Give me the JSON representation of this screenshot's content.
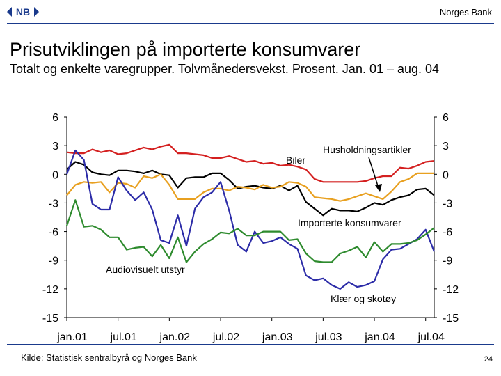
{
  "header": {
    "brand": "Norges Bank",
    "logo_text": "NB"
  },
  "title": "Prisutviklingen på importerte konsumvarer",
  "subtitle": "Totalt og enkelte varegrupper. Tolvmånedersvekst. Prosent. Jan. 01 – aug. 04",
  "footer": {
    "source": "Kilde: Statistisk sentralbyrå og Norges Bank",
    "page": "24"
  },
  "chart_data": {
    "type": "line",
    "title": "",
    "xlabel": "",
    "ylabel": "",
    "ylim": [
      -15,
      6
    ],
    "yticks": [
      "6",
      "3",
      "0",
      "-3",
      "-6",
      "-9",
      "-12",
      "-15"
    ],
    "yticks_right": [
      "6",
      "3",
      "0",
      "-3",
      "-6",
      "-9",
      "-12",
      "-15"
    ],
    "xticks": [
      "jan.01",
      "jul.01",
      "jan.02",
      "jul.02",
      "jan.03",
      "jul.03",
      "jan.04",
      "jul.04"
    ],
    "x": [
      "jan.01",
      "feb.01",
      "mar.01",
      "apr.01",
      "mai.01",
      "jun.01",
      "jul.01",
      "aug.01",
      "sep.01",
      "okt.01",
      "nov.01",
      "des.01",
      "jan.02",
      "feb.02",
      "mar.02",
      "apr.02",
      "mai.02",
      "jun.02",
      "jul.02",
      "aug.02",
      "sep.02",
      "okt.02",
      "nov.02",
      "des.02",
      "jan.03",
      "feb.03",
      "mar.03",
      "apr.03",
      "mai.03",
      "jun.03",
      "jul.03",
      "aug.03",
      "sep.03",
      "okt.03",
      "nov.03",
      "des.03",
      "jan.04",
      "feb.04",
      "mar.04",
      "apr.04",
      "mai.04",
      "jun.04",
      "jul.04",
      "aug.04"
    ],
    "series": [
      {
        "name": "Husholdningsartikler",
        "color": "#d42020",
        "values": [
          2.3,
          2.2,
          2.2,
          2.6,
          2.3,
          2.5,
          2.1,
          2.2,
          2.5,
          2.8,
          2.6,
          2.9,
          3.1,
          2.2,
          2.2,
          2.1,
          2.0,
          1.7,
          1.7,
          1.9,
          1.6,
          1.3,
          1.4,
          1.1,
          1.2,
          0.9,
          1.0,
          0.8,
          0.5,
          -0.5,
          -0.8,
          -0.8,
          -0.8,
          -0.8,
          -0.8,
          -0.7,
          -0.4,
          -0.2,
          -0.2,
          0.7,
          0.6,
          0.9,
          1.3,
          1.4
        ]
      },
      {
        "name": "Biler",
        "color": "#000000",
        "values": [
          0.5,
          1.3,
          1.0,
          0.2,
          0.0,
          -0.1,
          0.4,
          0.4,
          0.3,
          0.1,
          0.4,
          0.0,
          -0.1,
          -1.4,
          -0.4,
          -0.3,
          -0.3,
          0.1,
          0.1,
          -0.6,
          -1.5,
          -1.3,
          -1.2,
          -1.4,
          -1.5,
          -1.2,
          -1.7,
          -1.2,
          -2.9,
          -3.6,
          -4.3,
          -3.6,
          -3.8,
          -3.8,
          -3.9,
          -3.5,
          -3.0,
          -3.2,
          -2.7,
          -2.4,
          -2.2,
          -1.6,
          -1.5,
          -2.2
        ]
      },
      {
        "name": "Importerte konsumvarer",
        "color": "#e8a020",
        "values": [
          -2.2,
          -1.1,
          -0.8,
          -0.9,
          -0.8,
          -1.9,
          -0.9,
          -1.0,
          -1.4,
          -0.2,
          -0.4,
          0.0,
          -1.1,
          -2.6,
          -2.6,
          -2.6,
          -1.9,
          -1.5,
          -1.5,
          -1.7,
          -1.3,
          -1.4,
          -1.6,
          -1.1,
          -1.4,
          -1.3,
          -0.8,
          -0.9,
          -1.3,
          -2.4,
          -2.5,
          -2.6,
          -2.8,
          -2.6,
          -2.3,
          -2.0,
          -2.3,
          -2.6,
          -1.8,
          -0.8,
          -0.5,
          0.1,
          0.1,
          0.1
        ]
      },
      {
        "name": "Audiovisuelt utstyr",
        "color": "#2c2ca8",
        "values": [
          0.0,
          2.5,
          1.5,
          -3.1,
          -3.7,
          -3.7,
          -0.3,
          -1.7,
          -2.7,
          -1.9,
          -3.7,
          -6.9,
          -7.2,
          -4.3,
          -7.5,
          -3.6,
          -2.4,
          -1.9,
          -0.8,
          -3.8,
          -7.4,
          -8.1,
          -6.0,
          -7.2,
          -7.0,
          -6.6,
          -7.3,
          -7.8,
          -10.6,
          -11.1,
          -10.9,
          -11.6,
          -12.0,
          -11.3,
          -11.8,
          -11.6,
          -11.2,
          -8.9,
          -7.9,
          -7.8,
          -7.3,
          -6.8,
          -5.8,
          -8.1
        ]
      },
      {
        "name": "Klær og skotøy",
        "color": "#2e8b2e",
        "values": [
          -5.4,
          -2.7,
          -5.5,
          -5.4,
          -5.8,
          -6.6,
          -6.6,
          -7.9,
          -7.7,
          -7.6,
          -8.6,
          -7.4,
          -8.8,
          -6.6,
          -9.2,
          -8.1,
          -7.3,
          -6.8,
          -6.1,
          -6.2,
          -5.7,
          -6.4,
          -6.4,
          -6.0,
          -6.0,
          -6.0,
          -6.9,
          -6.8,
          -8.3,
          -9.1,
          -9.2,
          -9.2,
          -8.3,
          -8.0,
          -7.6,
          -8.7,
          -7.1,
          -8.1,
          -7.3,
          -7.3,
          -7.2,
          -6.9,
          -6.3,
          -5.6
        ]
      }
    ],
    "annotations": [
      {
        "text": "Biler"
      },
      {
        "text": "Husholdningsartikler"
      },
      {
        "text": "Importerte konsumvarer"
      },
      {
        "text": "Audiovisuelt utstyr"
      },
      {
        "text": "Klær og skotøy"
      }
    ]
  }
}
